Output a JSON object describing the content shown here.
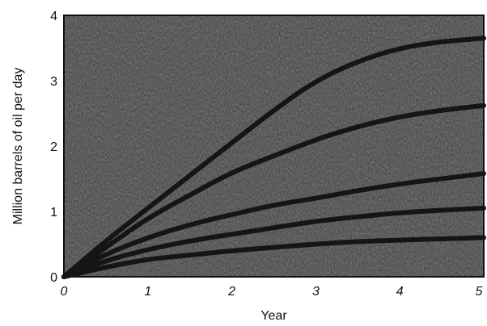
{
  "chart_data": {
    "type": "line",
    "title": "",
    "xlabel": "Year",
    "ylabel": "Million barrels of oil per day",
    "xlim": [
      0,
      5
    ],
    "ylim": [
      0,
      4
    ],
    "x_ticks": [
      "0",
      "1",
      "2",
      "3",
      "4",
      "5"
    ],
    "y_ticks": [
      "0",
      "1",
      "2",
      "3",
      "4"
    ],
    "grid": false,
    "legend": "none",
    "plot_background": "#3a3a3a",
    "line_color": "#151515",
    "x": [
      0,
      0.5,
      1,
      1.5,
      2,
      2.5,
      3,
      3.5,
      4,
      4.5,
      5
    ],
    "series": [
      {
        "values": [
          0,
          0.55,
          1.05,
          1.55,
          2.05,
          2.55,
          3.0,
          3.3,
          3.5,
          3.6,
          3.65
        ]
      },
      {
        "values": [
          0,
          0.45,
          0.9,
          1.25,
          1.6,
          1.85,
          2.1,
          2.3,
          2.45,
          2.55,
          2.62
        ]
      },
      {
        "values": [
          0,
          0.35,
          0.6,
          0.8,
          0.95,
          1.1,
          1.2,
          1.32,
          1.42,
          1.5,
          1.58
        ]
      },
      {
        "values": [
          0,
          0.25,
          0.42,
          0.55,
          0.65,
          0.75,
          0.85,
          0.92,
          0.98,
          1.02,
          1.05
        ]
      },
      {
        "values": [
          0,
          0.15,
          0.27,
          0.33,
          0.4,
          0.45,
          0.5,
          0.54,
          0.56,
          0.58,
          0.6
        ]
      }
    ]
  }
}
